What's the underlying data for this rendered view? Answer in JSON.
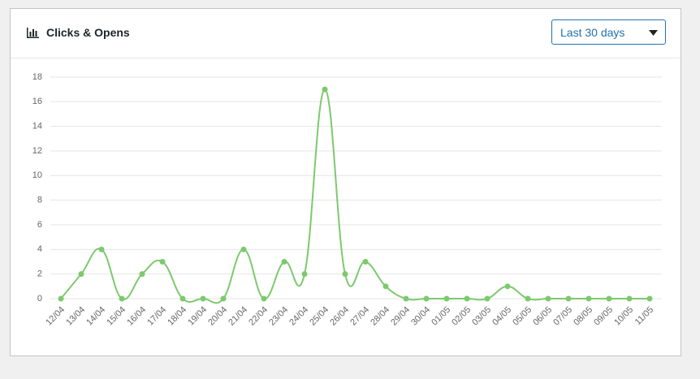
{
  "header": {
    "title": "Clicks & Opens",
    "range": "Last 30 days"
  },
  "chart_data": {
    "type": "line",
    "categories": [
      "12/04",
      "13/04",
      "14/04",
      "15/04",
      "16/04",
      "17/04",
      "18/04",
      "19/04",
      "20/04",
      "21/04",
      "22/04",
      "23/04",
      "24/04",
      "25/04",
      "26/04",
      "27/04",
      "28/04",
      "29/04",
      "30/04",
      "01/05",
      "02/05",
      "03/05",
      "04/05",
      "05/05",
      "06/05",
      "07/05",
      "08/05",
      "09/05",
      "10/05",
      "11/05"
    ],
    "values": [
      0,
      2,
      4,
      0,
      2,
      3,
      0,
      0,
      0,
      4,
      0,
      3,
      2,
      17,
      2,
      3,
      1,
      0,
      0,
      0,
      0,
      0,
      1,
      0,
      0,
      0,
      0,
      0,
      0,
      0
    ],
    "color": "#7dc96e",
    "ylim": [
      0,
      18
    ],
    "yticks": [
      0,
      2,
      4,
      6,
      8,
      10,
      12,
      14,
      16,
      18
    ],
    "grid": true
  }
}
